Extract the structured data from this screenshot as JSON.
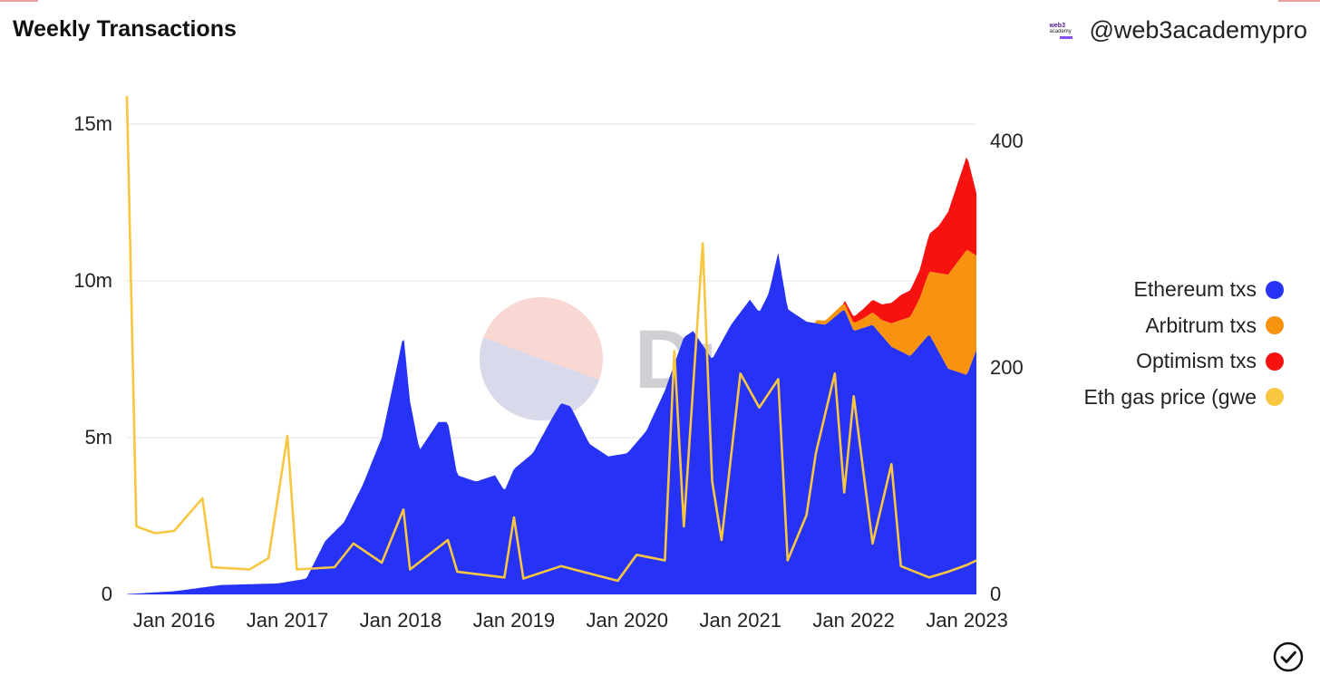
{
  "header": {
    "title": "Weekly Transactions",
    "brand_logo_line1": "web3",
    "brand_logo_line2": "academy",
    "handle": "@web3academypro"
  },
  "watermark": {
    "text": "Dune"
  },
  "colors": {
    "ethereum": "#2633f5",
    "arbitrum": "#f7930f",
    "optimism": "#f5120f",
    "gas": "#f8c640",
    "grid": "#e6e6e6",
    "watermark_top": "#f9d8d4",
    "watermark_bottom": "#d8d9ea"
  },
  "chart_data": {
    "type": "area",
    "title": "Weekly Transactions",
    "x_range": [
      "2015-08",
      "2023-02"
    ],
    "x_ticks": [
      "Jan 2016",
      "Jan 2017",
      "Jan 2018",
      "Jan 2019",
      "Jan 2020",
      "Jan 2021",
      "Jan 2022",
      "Jan 2023"
    ],
    "y_left": {
      "ticks": [
        0,
        5000000,
        10000000,
        15000000
      ],
      "tick_labels": [
        "0",
        "5m",
        "10m",
        "15m"
      ],
      "range": [
        0,
        15000000
      ]
    },
    "y_right": {
      "ticks": [
        0,
        200,
        400
      ],
      "tick_labels": [
        "0",
        "200",
        "400"
      ],
      "range": [
        0,
        400
      ]
    },
    "grid": true,
    "legend_position": "right",
    "stacked": true,
    "series": [
      {
        "name": "Ethereum txs",
        "axis": "left",
        "kind": "area",
        "points": [
          [
            "2015-08",
            0.01
          ],
          [
            "2016-01",
            0.1
          ],
          [
            "2016-06",
            0.3
          ],
          [
            "2016-12",
            0.35
          ],
          [
            "2017-03",
            0.5
          ],
          [
            "2017-05",
            1.7
          ],
          [
            "2017-07",
            2.3
          ],
          [
            "2017-09",
            3.5
          ],
          [
            "2017-11",
            5.0
          ],
          [
            "2017-12-20",
            7.3
          ],
          [
            "2018-01-10",
            8.3
          ],
          [
            "2018-01-30",
            6.2
          ],
          [
            "2018-03",
            4.6
          ],
          [
            "2018-05",
            5.5
          ],
          [
            "2018-06",
            5.5
          ],
          [
            "2018-07",
            3.8
          ],
          [
            "2018-09",
            3.6
          ],
          [
            "2018-11",
            3.8
          ],
          [
            "2018-12",
            3.3
          ],
          [
            "2019-01",
            4.0
          ],
          [
            "2019-03",
            4.5
          ],
          [
            "2019-05",
            5.6
          ],
          [
            "2019-06",
            6.1
          ],
          [
            "2019-07",
            6.0
          ],
          [
            "2019-09",
            4.8
          ],
          [
            "2019-11",
            4.4
          ],
          [
            "2020-01",
            4.5
          ],
          [
            "2020-03",
            5.2
          ],
          [
            "2020-05",
            6.5
          ],
          [
            "2020-07",
            8.2
          ],
          [
            "2020-08",
            8.4
          ],
          [
            "2020-10",
            7.5
          ],
          [
            "2020-12",
            8.6
          ],
          [
            "2021-02",
            9.4
          ],
          [
            "2021-03",
            9.0
          ],
          [
            "2021-04",
            9.6
          ],
          [
            "2021-05",
            10.9
          ],
          [
            "2021-06",
            9.1
          ],
          [
            "2021-08",
            8.7
          ],
          [
            "2021-10",
            8.6
          ],
          [
            "2021-12",
            9.1
          ],
          [
            "2022-01",
            8.4
          ],
          [
            "2022-03",
            8.6
          ],
          [
            "2022-05",
            7.9
          ],
          [
            "2022-07",
            7.6
          ],
          [
            "2022-09",
            8.3
          ],
          [
            "2022-11",
            7.2
          ],
          [
            "2023-01",
            7.0
          ],
          [
            "2023-02",
            7.8
          ]
        ]
      },
      {
        "name": "Arbitrum txs",
        "axis": "left",
        "kind": "area",
        "points": [
          [
            "2021-09",
            0.1
          ],
          [
            "2021-12",
            0.2
          ],
          [
            "2022-02",
            0.3
          ],
          [
            "2022-04",
            0.5
          ],
          [
            "2022-06",
            1.0
          ],
          [
            "2022-08",
            1.5
          ],
          [
            "2022-10",
            2.5
          ],
          [
            "2022-12",
            3.5
          ],
          [
            "2023-01",
            4.0
          ],
          [
            "2023-02",
            3.0
          ]
        ]
      },
      {
        "name": "Optimism txs",
        "axis": "left",
        "kind": "area",
        "points": [
          [
            "2021-12",
            0.1
          ],
          [
            "2022-02",
            0.3
          ],
          [
            "2022-04",
            0.5
          ],
          [
            "2022-06",
            0.8
          ],
          [
            "2022-08",
            0.9
          ],
          [
            "2022-10",
            1.5
          ],
          [
            "2022-12",
            2.5
          ],
          [
            "2023-01",
            3.0
          ],
          [
            "2023-02",
            2.0
          ]
        ]
      },
      {
        "name": "Eth gas price (gwe",
        "axis": "right",
        "kind": "line",
        "points": [
          [
            "2015-08",
            440
          ],
          [
            "2015-09",
            60
          ],
          [
            "2015-11",
            54
          ],
          [
            "2016-01",
            56
          ],
          [
            "2016-04",
            85
          ],
          [
            "2016-05",
            24
          ],
          [
            "2016-09",
            22
          ],
          [
            "2016-11",
            32
          ],
          [
            "2017-01",
            140
          ],
          [
            "2017-02",
            22
          ],
          [
            "2017-06",
            24
          ],
          [
            "2017-08",
            45
          ],
          [
            "2017-11",
            28
          ],
          [
            "2018-01-10",
            75
          ],
          [
            "2018-02",
            22
          ],
          [
            "2018-06",
            48
          ],
          [
            "2018-07",
            20
          ],
          [
            "2018-12",
            15
          ],
          [
            "2019-01",
            68
          ],
          [
            "2019-02",
            14
          ],
          [
            "2019-06",
            25
          ],
          [
            "2019-12",
            12
          ],
          [
            "2020-02",
            35
          ],
          [
            "2020-05",
            30
          ],
          [
            "2020-06",
            215
          ],
          [
            "2020-07",
            60
          ],
          [
            "2020-09",
            310
          ],
          [
            "2020-10",
            100
          ],
          [
            "2020-11",
            48
          ],
          [
            "2021-01",
            195
          ],
          [
            "2021-03",
            165
          ],
          [
            "2021-05",
            190
          ],
          [
            "2021-06",
            30
          ],
          [
            "2021-08",
            70
          ],
          [
            "2021-09",
            125
          ],
          [
            "2021-11",
            195
          ],
          [
            "2021-12",
            90
          ],
          [
            "2022-01",
            175
          ],
          [
            "2022-03",
            45
          ],
          [
            "2022-05",
            115
          ],
          [
            "2022-06",
            25
          ],
          [
            "2022-09",
            15
          ],
          [
            "2022-11",
            20
          ],
          [
            "2023-01",
            26
          ],
          [
            "2023-02",
            30
          ]
        ]
      }
    ]
  }
}
